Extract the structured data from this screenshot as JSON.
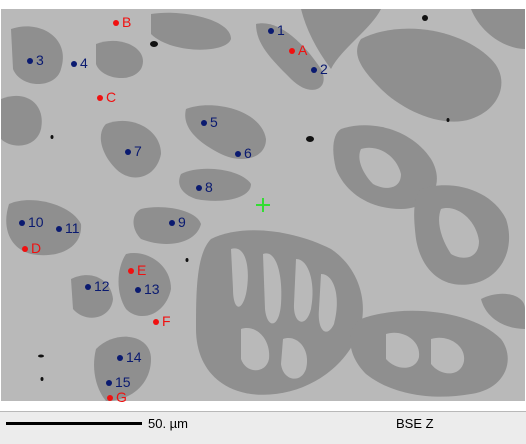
{
  "image": {
    "kind": "SEM backscattered electron micrograph",
    "colors": {
      "matrix": "#b9b9b9",
      "dark_phase": "#8f8f8f",
      "pores": "#111111",
      "navy_marker": "#0a1a70",
      "red_marker": "#f01010",
      "crosshair": "#33dd33"
    }
  },
  "markers": [
    {
      "label": "1",
      "color": "navy"
    },
    {
      "label": "2",
      "color": "navy"
    },
    {
      "label": "3",
      "color": "navy"
    },
    {
      "label": "4",
      "color": "navy"
    },
    {
      "label": "5",
      "color": "navy"
    },
    {
      "label": "6",
      "color": "navy"
    },
    {
      "label": "7",
      "color": "navy"
    },
    {
      "label": "8",
      "color": "navy"
    },
    {
      "label": "9",
      "color": "navy"
    },
    {
      "label": "10",
      "color": "navy"
    },
    {
      "label": "11",
      "color": "navy"
    },
    {
      "label": "12",
      "color": "navy"
    },
    {
      "label": "13",
      "color": "navy"
    },
    {
      "label": "14",
      "color": "navy"
    },
    {
      "label": "15",
      "color": "navy"
    },
    {
      "label": "A",
      "color": "red"
    },
    {
      "label": "B",
      "color": "red"
    },
    {
      "label": "C",
      "color": "red"
    },
    {
      "label": "D",
      "color": "red"
    },
    {
      "label": "E",
      "color": "red"
    },
    {
      "label": "F",
      "color": "red"
    },
    {
      "label": "G",
      "color": "red"
    }
  ],
  "status_bar": {
    "scale_label": "50. µm",
    "detector_label": "BSE Z"
  }
}
